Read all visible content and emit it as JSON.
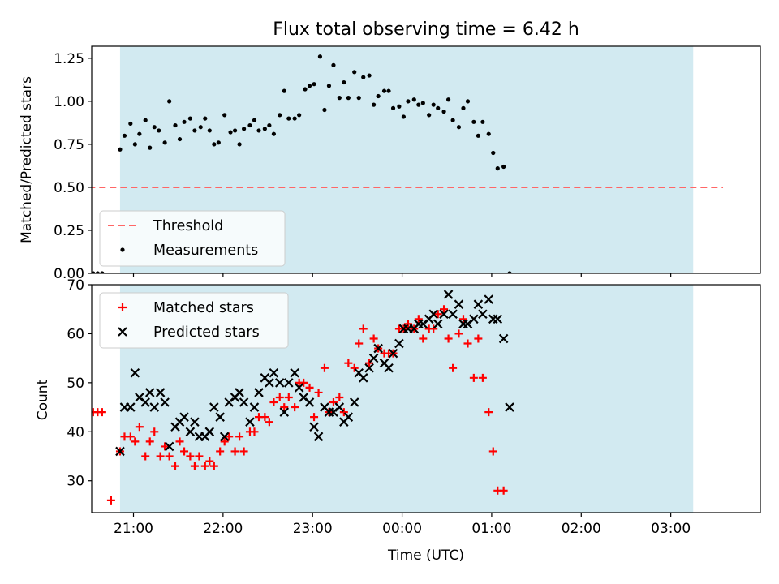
{
  "chart_data": [
    {
      "type": "scatter",
      "title": "Flux total observing time = 6.42 h",
      "xlabel": "",
      "ylabel": "Matched/Predicted stars",
      "x_is_time": true,
      "xlim": [
        "20:32",
        "04:00"
      ],
      "ylim": [
        0,
        1.32
      ],
      "yticks": [
        0.0,
        0.25,
        0.5,
        0.75,
        1.0,
        1.25
      ],
      "ytick_labels": [
        "0.00",
        "0.25",
        "0.50",
        "0.75",
        "1.00",
        "1.25"
      ],
      "shaded_span": [
        "20:51",
        "03:15"
      ],
      "shaded_color": "#add8e6",
      "legend_position": "lower-left",
      "series": [
        {
          "name": "Threshold",
          "kind": "line",
          "color": "#ff6666",
          "style": "dashed",
          "x": [
            "20:30",
            "03:35"
          ],
          "y": [
            0.5,
            0.5
          ]
        },
        {
          "name": "Measurements",
          "kind": "points",
          "color": "#000000",
          "points": [
            [
              "20:33",
              0.0
            ],
            [
              "20:36",
              0.0
            ],
            [
              "20:39",
              0.0
            ],
            [
              "20:51",
              0.72
            ],
            [
              "20:54",
              0.8
            ],
            [
              "20:58",
              0.87
            ],
            [
              "21:01",
              0.75
            ],
            [
              "21:04",
              0.81
            ],
            [
              "21:08",
              0.89
            ],
            [
              "21:11",
              0.73
            ],
            [
              "21:14",
              0.85
            ],
            [
              "21:17",
              0.83
            ],
            [
              "21:21",
              0.76
            ],
            [
              "21:24",
              1.0
            ],
            [
              "21:28",
              0.86
            ],
            [
              "21:31",
              0.78
            ],
            [
              "21:34",
              0.88
            ],
            [
              "21:38",
              0.9
            ],
            [
              "21:41",
              0.83
            ],
            [
              "21:45",
              0.85
            ],
            [
              "21:48",
              0.9
            ],
            [
              "21:51",
              0.83
            ],
            [
              "21:54",
              0.75
            ],
            [
              "21:57",
              0.76
            ],
            [
              "22:01",
              0.92
            ],
            [
              "22:05",
              0.82
            ],
            [
              "22:08",
              0.83
            ],
            [
              "22:11",
              0.75
            ],
            [
              "22:14",
              0.84
            ],
            [
              "22:18",
              0.86
            ],
            [
              "22:21",
              0.89
            ],
            [
              "22:24",
              0.83
            ],
            [
              "22:28",
              0.84
            ],
            [
              "22:31",
              0.86
            ],
            [
              "22:34",
              0.81
            ],
            [
              "22:38",
              0.92
            ],
            [
              "22:41",
              1.06
            ],
            [
              "22:44",
              0.9
            ],
            [
              "22:48",
              0.9
            ],
            [
              "22:51",
              0.92
            ],
            [
              "22:55",
              1.07
            ],
            [
              "22:58",
              1.09
            ],
            [
              "23:01",
              1.1
            ],
            [
              "23:05",
              1.26
            ],
            [
              "23:08",
              0.95
            ],
            [
              "23:11",
              1.09
            ],
            [
              "23:14",
              1.21
            ],
            [
              "23:18",
              1.02
            ],
            [
              "23:21",
              1.11
            ],
            [
              "23:24",
              1.02
            ],
            [
              "23:28",
              1.17
            ],
            [
              "23:31",
              1.02
            ],
            [
              "23:34",
              1.14
            ],
            [
              "23:38",
              1.15
            ],
            [
              "23:41",
              0.98
            ],
            [
              "23:44",
              1.03
            ],
            [
              "23:48",
              1.06
            ],
            [
              "23:51",
              1.06
            ],
            [
              "23:54",
              0.96
            ],
            [
              "23:58",
              0.97
            ],
            [
              "00:01",
              0.91
            ],
            [
              "00:04",
              1.0
            ],
            [
              "00:08",
              1.01
            ],
            [
              "00:11",
              0.98
            ],
            [
              "00:14",
              0.99
            ],
            [
              "00:18",
              0.92
            ],
            [
              "00:21",
              0.98
            ],
            [
              "00:24",
              0.96
            ],
            [
              "00:28",
              0.94
            ],
            [
              "00:31",
              1.01
            ],
            [
              "00:34",
              0.89
            ],
            [
              "00:38",
              0.85
            ],
            [
              "00:41",
              0.96
            ],
            [
              "00:44",
              1.0
            ],
            [
              "00:48",
              0.88
            ],
            [
              "00:51",
              0.8
            ],
            [
              "00:54",
              0.88
            ],
            [
              "00:58",
              0.81
            ],
            [
              "01:01",
              0.7
            ],
            [
              "01:04",
              0.61
            ],
            [
              "01:08",
              0.62
            ],
            [
              "01:12",
              0.0
            ]
          ]
        }
      ]
    },
    {
      "type": "scatter",
      "title": "",
      "xlabel": "Time (UTC)",
      "ylabel": "Count",
      "x_is_time": true,
      "xlim": [
        "20:32",
        "04:00"
      ],
      "ylim": [
        23.5,
        70
      ],
      "yticks": [
        30,
        40,
        50,
        60,
        70
      ],
      "ytick_labels": [
        "30",
        "40",
        "50",
        "60",
        "70"
      ],
      "xticks": [
        "21:00",
        "22:00",
        "23:00",
        "00:00",
        "01:00",
        "02:00",
        "03:00"
      ],
      "xtick_labels": [
        "21:00",
        "22:00",
        "23:00",
        "00:00",
        "01:00",
        "02:00",
        "03:00"
      ],
      "shaded_span": [
        "20:51",
        "03:15"
      ],
      "shaded_color": "#add8e6",
      "legend_position": "upper-left",
      "series": [
        {
          "name": "Matched stars",
          "kind": "plus",
          "color": "#ff0000",
          "points": [
            [
              "20:33",
              44
            ],
            [
              "20:36",
              44
            ],
            [
              "20:39",
              44
            ],
            [
              "20:45",
              26
            ],
            [
              "20:51",
              36
            ],
            [
              "20:54",
              39
            ],
            [
              "20:58",
              39
            ],
            [
              "21:01",
              38
            ],
            [
              "21:04",
              41
            ],
            [
              "21:08",
              35
            ],
            [
              "21:11",
              38
            ],
            [
              "21:14",
              40
            ],
            [
              "21:18",
              35
            ],
            [
              "21:21",
              37
            ],
            [
              "21:24",
              35
            ],
            [
              "21:28",
              33
            ],
            [
              "21:31",
              38
            ],
            [
              "21:34",
              36
            ],
            [
              "21:38",
              35
            ],
            [
              "21:41",
              33
            ],
            [
              "21:44",
              35
            ],
            [
              "21:48",
              33
            ],
            [
              "21:51",
              34
            ],
            [
              "21:54",
              33
            ],
            [
              "21:58",
              36
            ],
            [
              "22:01",
              38
            ],
            [
              "22:04",
              39
            ],
            [
              "22:08",
              36
            ],
            [
              "22:11",
              39
            ],
            [
              "22:14",
              36
            ],
            [
              "22:18",
              40
            ],
            [
              "22:21",
              40
            ],
            [
              "22:24",
              43
            ],
            [
              "22:28",
              43
            ],
            [
              "22:31",
              42
            ],
            [
              "22:34",
              46
            ],
            [
              "22:38",
              47
            ],
            [
              "22:41",
              45
            ],
            [
              "22:44",
              47
            ],
            [
              "22:48",
              45
            ],
            [
              "22:51",
              50
            ],
            [
              "22:54",
              50
            ],
            [
              "22:58",
              49
            ],
            [
              "23:01",
              43
            ],
            [
              "23:04",
              48
            ],
            [
              "23:08",
              53
            ],
            [
              "23:11",
              44
            ],
            [
              "23:14",
              46
            ],
            [
              "23:18",
              47
            ],
            [
              "23:21",
              44
            ],
            [
              "23:24",
              54
            ],
            [
              "23:28",
              53
            ],
            [
              "23:31",
              58
            ],
            [
              "23:34",
              61
            ],
            [
              "23:38",
              54
            ],
            [
              "23:41",
              59
            ],
            [
              "23:44",
              57
            ],
            [
              "23:48",
              56
            ],
            [
              "23:51",
              56
            ],
            [
              "23:54",
              56
            ],
            [
              "23:58",
              61
            ],
            [
              "00:01",
              61
            ],
            [
              "00:04",
              62
            ],
            [
              "00:08",
              61
            ],
            [
              "00:11",
              63
            ],
            [
              "00:14",
              59
            ],
            [
              "00:18",
              61
            ],
            [
              "00:21",
              61
            ],
            [
              "00:24",
              64
            ],
            [
              "00:28",
              65
            ],
            [
              "00:31",
              59
            ],
            [
              "00:34",
              53
            ],
            [
              "00:38",
              60
            ],
            [
              "00:41",
              63
            ],
            [
              "00:44",
              58
            ],
            [
              "00:48",
              51
            ],
            [
              "00:51",
              59
            ],
            [
              "00:54",
              51
            ],
            [
              "00:58",
              44
            ],
            [
              "01:01",
              36
            ],
            [
              "01:04",
              28
            ],
            [
              "01:08",
              28
            ]
          ]
        },
        {
          "name": "Predicted stars",
          "kind": "x",
          "color": "#000000",
          "points": [
            [
              "20:51",
              36
            ],
            [
              "20:54",
              45
            ],
            [
              "20:58",
              45
            ],
            [
              "21:01",
              52
            ],
            [
              "21:04",
              47
            ],
            [
              "21:08",
              46
            ],
            [
              "21:11",
              48
            ],
            [
              "21:14",
              45
            ],
            [
              "21:18",
              48
            ],
            [
              "21:21",
              46
            ],
            [
              "21:24",
              37
            ],
            [
              "21:28",
              41
            ],
            [
              "21:31",
              42
            ],
            [
              "21:34",
              43
            ],
            [
              "21:38",
              40
            ],
            [
              "21:41",
              42
            ],
            [
              "21:44",
              39
            ],
            [
              "21:48",
              39
            ],
            [
              "21:51",
              40
            ],
            [
              "21:54",
              45
            ],
            [
              "21:58",
              43
            ],
            [
              "22:01",
              39
            ],
            [
              "22:04",
              46
            ],
            [
              "22:08",
              47
            ],
            [
              "22:11",
              48
            ],
            [
              "22:14",
              46
            ],
            [
              "22:18",
              42
            ],
            [
              "22:21",
              45
            ],
            [
              "22:24",
              48
            ],
            [
              "22:28",
              51
            ],
            [
              "22:31",
              50
            ],
            [
              "22:34",
              52
            ],
            [
              "22:38",
              50
            ],
            [
              "22:41",
              44
            ],
            [
              "22:44",
              50
            ],
            [
              "22:48",
              52
            ],
            [
              "22:51",
              49
            ],
            [
              "22:54",
              47
            ],
            [
              "22:58",
              46
            ],
            [
              "23:01",
              41
            ],
            [
              "23:04",
              39
            ],
            [
              "23:08",
              45
            ],
            [
              "23:11",
              44
            ],
            [
              "23:14",
              44
            ],
            [
              "23:18",
              45
            ],
            [
              "23:21",
              42
            ],
            [
              "23:24",
              43
            ],
            [
              "23:28",
              46
            ],
            [
              "23:31",
              52
            ],
            [
              "23:34",
              51
            ],
            [
              "23:38",
              53
            ],
            [
              "23:41",
              55
            ],
            [
              "23:44",
              57
            ],
            [
              "23:48",
              54
            ],
            [
              "23:51",
              53
            ],
            [
              "23:54",
              56
            ],
            [
              "23:58",
              58
            ],
            [
              "00:01",
              61
            ],
            [
              "00:04",
              61
            ],
            [
              "00:08",
              61
            ],
            [
              "00:11",
              62
            ],
            [
              "00:14",
              62
            ],
            [
              "00:18",
              63
            ],
            [
              "00:21",
              64
            ],
            [
              "00:24",
              62
            ],
            [
              "00:28",
              64
            ],
            [
              "00:31",
              68
            ],
            [
              "00:34",
              64
            ],
            [
              "00:38",
              66
            ],
            [
              "00:41",
              62
            ],
            [
              "00:44",
              62
            ],
            [
              "00:48",
              63
            ],
            [
              "00:51",
              66
            ],
            [
              "00:54",
              64
            ],
            [
              "00:58",
              67
            ],
            [
              "01:01",
              63
            ],
            [
              "01:04",
              63
            ],
            [
              "01:08",
              59
            ],
            [
              "01:12",
              45
            ]
          ]
        }
      ]
    }
  ]
}
